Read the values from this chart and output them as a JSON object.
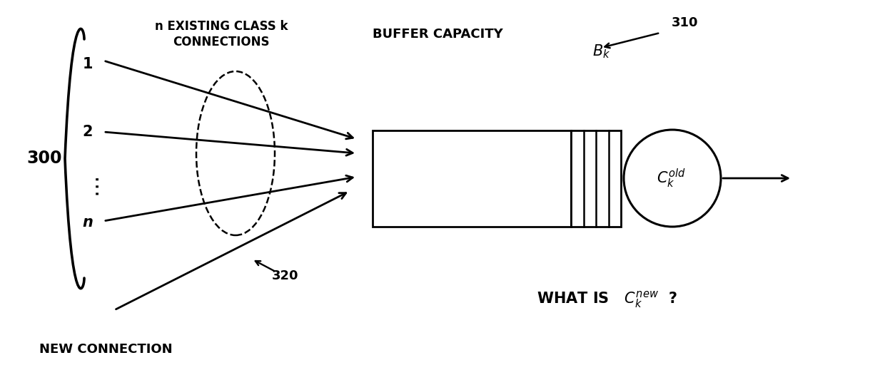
{
  "fig_width": 12.4,
  "fig_height": 5.26,
  "dpi": 100,
  "bg_color": "#ffffff",
  "label_300": "300",
  "label_1": "1",
  "label_2": "2",
  "label_n": "n",
  "label_320": "320",
  "label_310": "310",
  "label_new_connection": "NEW CONNECTION",
  "label_existing": "n EXISTING CLASS k\nCONNECTIONS",
  "label_buffer": "BUFFER CAPACITY",
  "label_what_is": "WHAT IS",
  "line_color": "#000000",
  "lw": 2.0
}
